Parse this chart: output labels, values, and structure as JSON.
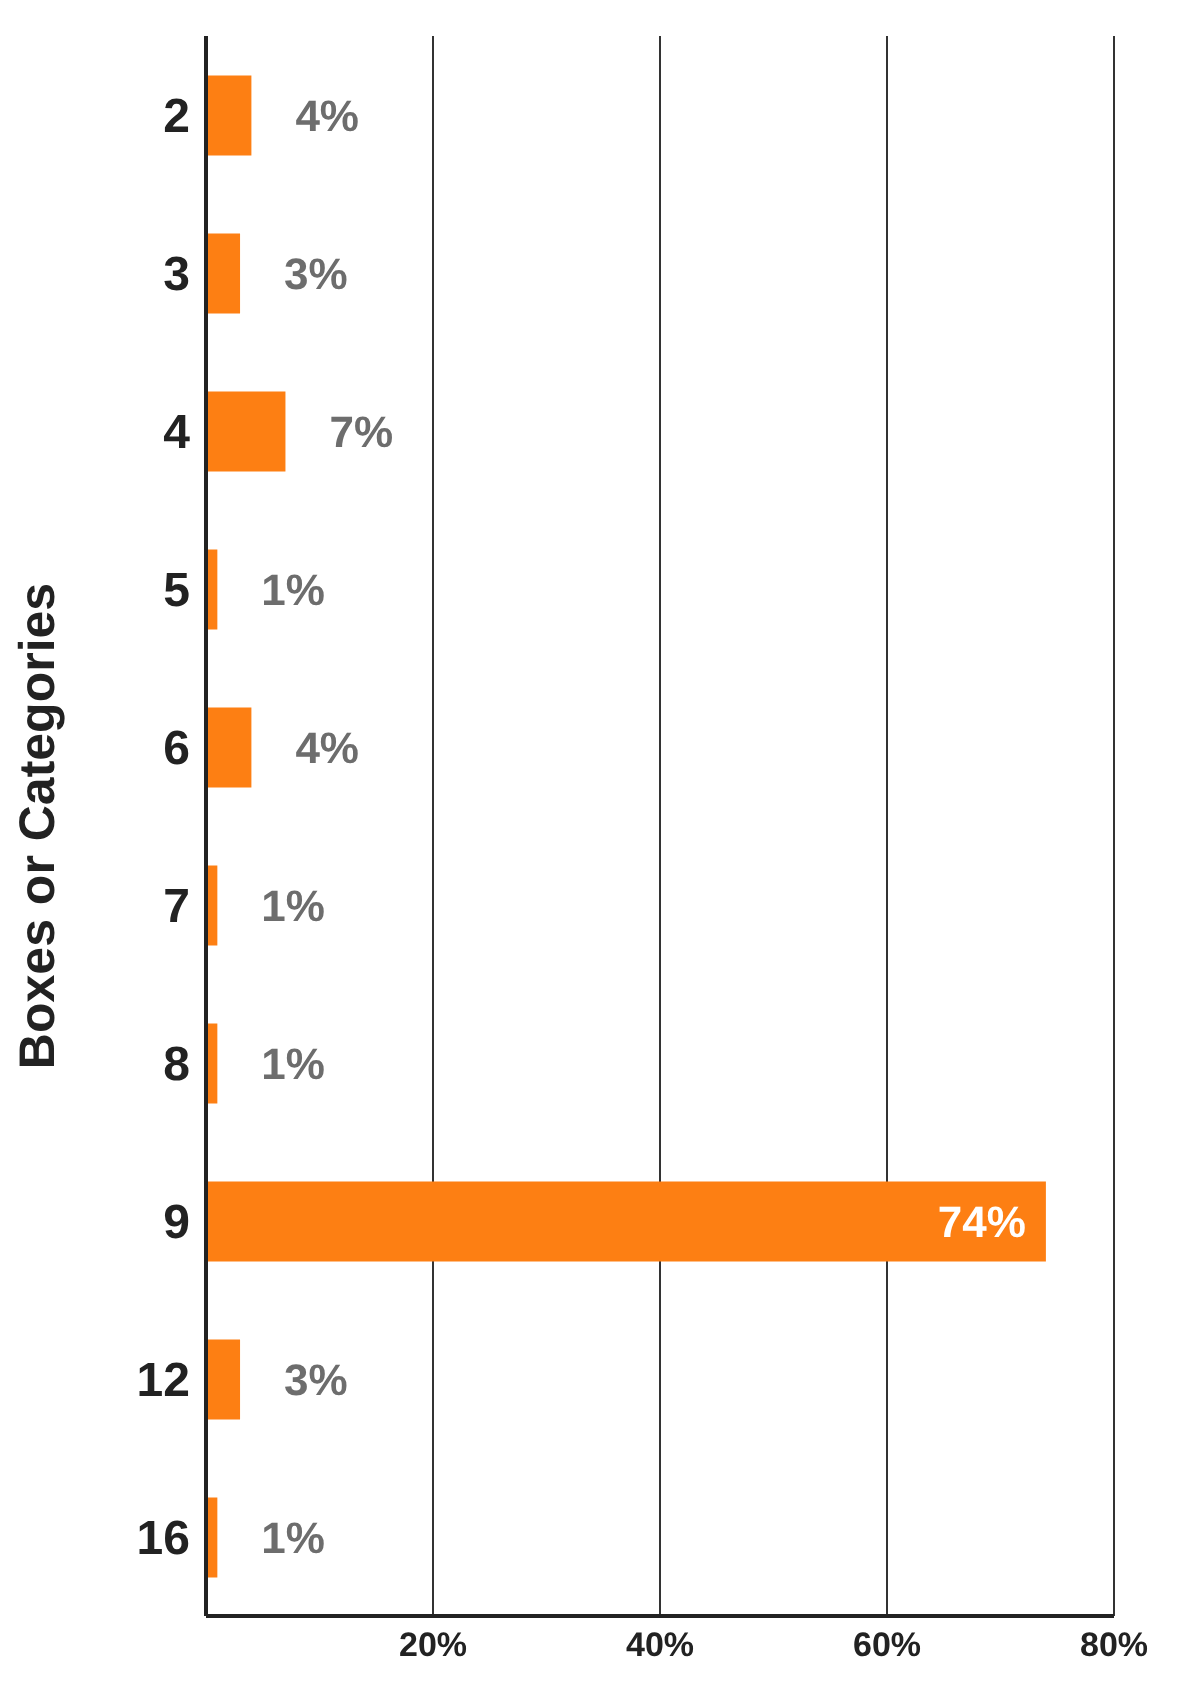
{
  "chart_data": {
    "type": "bar",
    "orientation": "horizontal",
    "ylabel": "Boxes or Categories",
    "categories": [
      "2",
      "3",
      "4",
      "5",
      "6",
      "7",
      "8",
      "9",
      "12",
      "16"
    ],
    "values": [
      4,
      3,
      7,
      1,
      4,
      1,
      1,
      74,
      3,
      1
    ],
    "value_labels": [
      "4%",
      "3%",
      "7%",
      "1%",
      "4%",
      "1%",
      "1%",
      "74%",
      "3%",
      "1%"
    ],
    "color": "#fd7f13",
    "xlim": [
      0,
      80
    ],
    "xticks": [
      {
        "value": 20,
        "label": "20%"
      },
      {
        "value": 40,
        "label": "40%"
      },
      {
        "value": 60,
        "label": "60%"
      },
      {
        "value": 80,
        "label": "80%"
      }
    ],
    "grid": "x",
    "legend": false
  }
}
